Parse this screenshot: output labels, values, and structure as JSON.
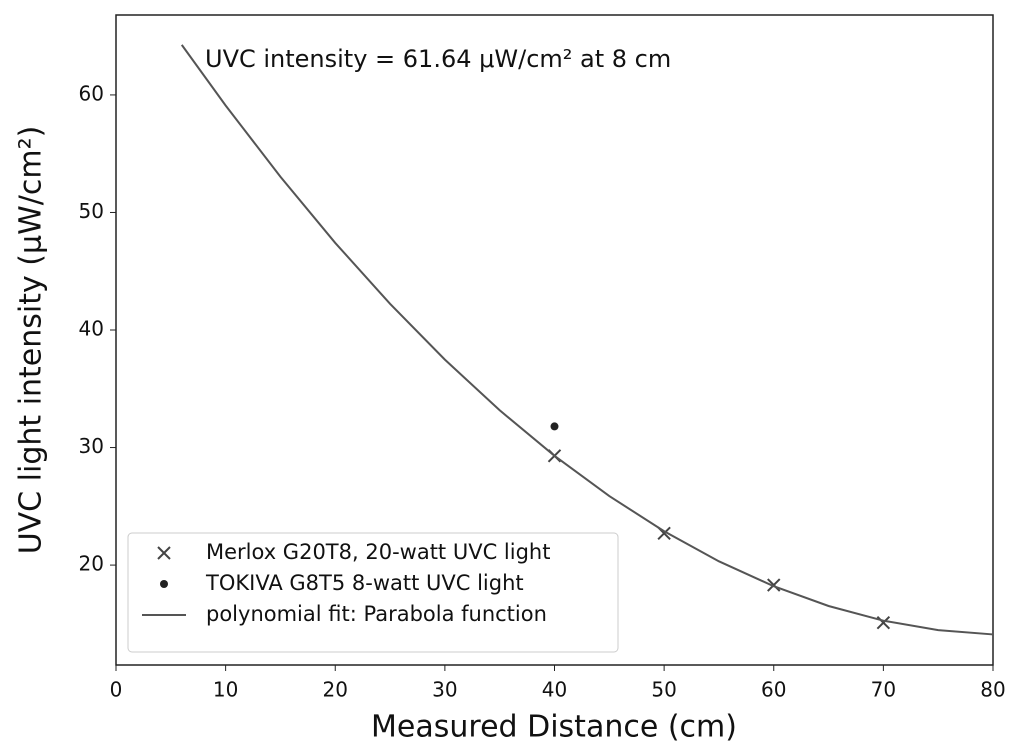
{
  "chart_data": {
    "type": "scatter",
    "annotation": "UVC intensity = 61.64 μW/cm² at 8 cm",
    "x_label": "Measured Distance (cm)",
    "y_label": "UVC light intensity (μW/cm²)",
    "xlim": [
      0,
      80
    ],
    "xticks": [
      0,
      10,
      20,
      30,
      40,
      50,
      60,
      70,
      80
    ],
    "ylim": [
      11.5,
      66.8
    ],
    "yticks": [
      20,
      30,
      40,
      50,
      60
    ],
    "grid": false,
    "legend": "lower left",
    "series": [
      {
        "name": "Merlox G20T8, 20-watt UVC light",
        "color": "#444444",
        "marker": "x",
        "x": [
          40,
          50,
          60,
          70
        ],
        "values": [
          29.3,
          22.7,
          18.3,
          15.1
        ]
      },
      {
        "name": "TOKIVA G8T5 8-watt UVC light",
        "color": "#222222",
        "marker": "dot",
        "x": [
          40
        ],
        "values": [
          31.8
        ]
      },
      {
        "name": "polynomial fit: Parabola function",
        "color": "#555555",
        "marker": "line",
        "x": [
          6,
          10,
          15,
          20,
          25,
          30,
          35,
          40,
          45,
          50,
          55,
          60,
          65,
          70,
          75,
          80
        ],
        "values": [
          64.26,
          59.1,
          53.04,
          47.41,
          42.23,
          37.48,
          33.17,
          29.3,
          25.87,
          22.88,
          20.32,
          18.2,
          16.52,
          15.27,
          14.47,
          14.1
        ]
      }
    ]
  }
}
